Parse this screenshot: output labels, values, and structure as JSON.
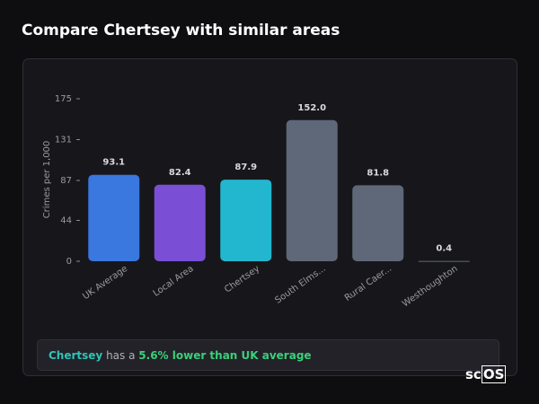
{
  "header": {
    "title": "Compare Chertsey with similar areas"
  },
  "chart_data": {
    "type": "bar",
    "y_label": "Crimes per 1,000",
    "categories": [
      "UK Average",
      "Local Area",
      "Chertsey",
      "South Elms...",
      "Rural Caer...",
      "Westhoughton"
    ],
    "values": [
      93.1,
      82.4,
      87.9,
      152.0,
      81.8,
      0.4
    ],
    "value_labels": [
      "93.1",
      "82.4",
      "87.9",
      "152.0",
      "81.8",
      "0.4"
    ],
    "colors": [
      "#3a77df",
      "#7a4fd6",
      "#23b7cf",
      "#5e6879",
      "#5e6879",
      "#5e6879"
    ],
    "ylim": [
      0,
      175
    ],
    "yticks": [
      0,
      44,
      87,
      131,
      175
    ],
    "grid": false
  },
  "summary": {
    "area": "Chertsey",
    "text": "has a",
    "highlight": "5.6% lower than UK average"
  },
  "logo": {
    "prefix": "sc",
    "box": "OS"
  }
}
